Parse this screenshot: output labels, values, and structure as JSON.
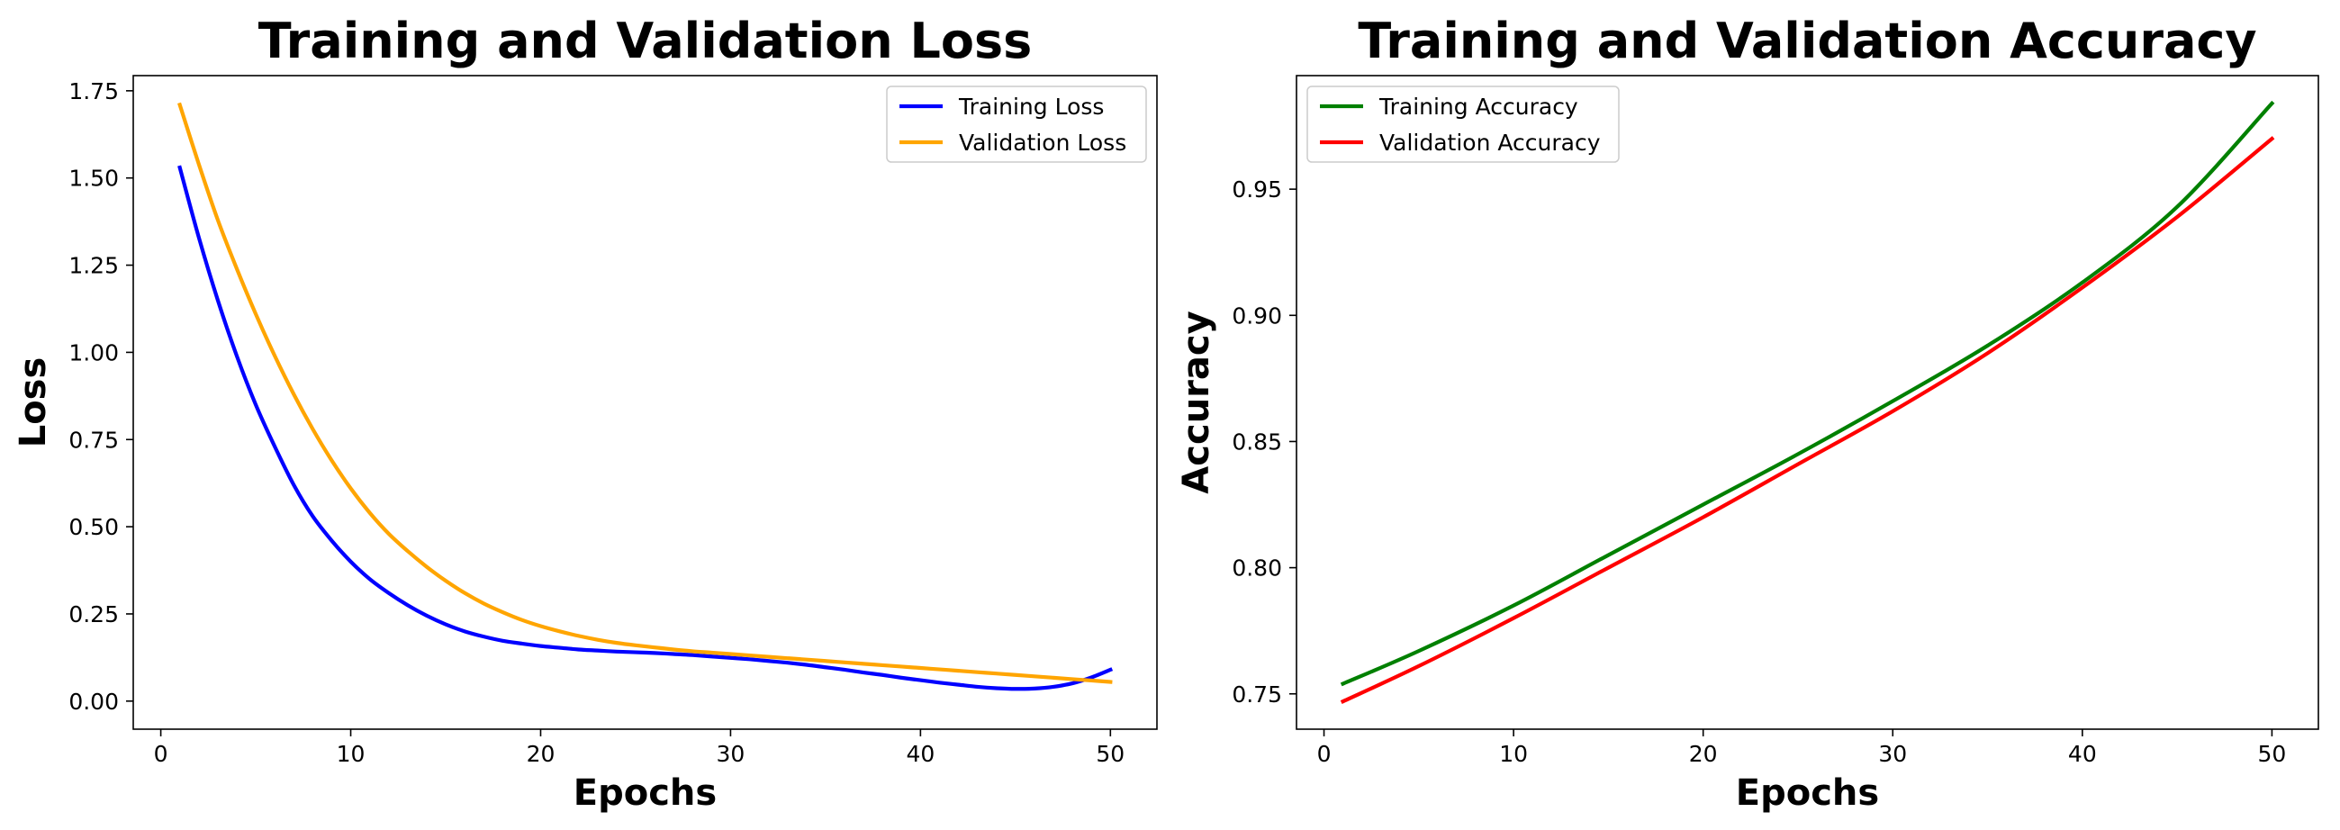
{
  "chart_data": [
    {
      "type": "line",
      "title": "Training and Validation Loss",
      "xlabel": "Epochs",
      "ylabel": "Loss",
      "xlim": [
        -1.45,
        52.45
      ],
      "ylim": [
        -0.0805,
        1.7935
      ],
      "xticks": [
        0,
        10,
        20,
        30,
        40,
        50
      ],
      "xtick_labels": [
        "0",
        "10",
        "20",
        "30",
        "40",
        "50"
      ],
      "yticks": [
        0,
        0.25,
        0.5,
        0.75,
        1.0,
        1.25,
        1.5,
        1.75
      ],
      "ytick_labels": [
        "0.00",
        "0.25",
        "0.50",
        "0.75",
        "1.00",
        "1.25",
        "1.50",
        "1.75"
      ],
      "legend_position": "upper-right",
      "series": [
        {
          "name": "Training Loss",
          "color": "#0000ff",
          "x": [
            1,
            2,
            3,
            4,
            5,
            6,
            7,
            8,
            9,
            10,
            11,
            12,
            13,
            14,
            15,
            16,
            17,
            18,
            19,
            20,
            21,
            22,
            23,
            24,
            25,
            26,
            27,
            28,
            29,
            30,
            31,
            32,
            33,
            34,
            35,
            36,
            37,
            38,
            39,
            40,
            41,
            42,
            43,
            44,
            45,
            46,
            47,
            48,
            49,
            50
          ],
          "values": [
            1.53,
            1.33,
            1.15,
            0.99,
            0.85,
            0.73,
            0.62,
            0.53,
            0.46,
            0.4,
            0.35,
            0.31,
            0.275,
            0.245,
            0.22,
            0.2,
            0.185,
            0.173,
            0.165,
            0.158,
            0.153,
            0.148,
            0.145,
            0.142,
            0.14,
            0.138,
            0.135,
            0.132,
            0.128,
            0.124,
            0.12,
            0.115,
            0.11,
            0.104,
            0.097,
            0.09,
            0.082,
            0.075,
            0.067,
            0.06,
            0.053,
            0.047,
            0.041,
            0.037,
            0.035,
            0.036,
            0.041,
            0.051,
            0.068,
            0.09
          ]
        },
        {
          "name": "Validation Loss",
          "color": "#ffa500",
          "x": [
            1,
            2,
            3,
            4,
            5,
            6,
            7,
            8,
            9,
            10,
            11,
            12,
            13,
            14,
            15,
            16,
            17,
            18,
            19,
            20,
            21,
            22,
            23,
            24,
            25,
            26,
            27,
            28,
            29,
            30,
            31,
            32,
            33,
            34,
            35,
            36,
            37,
            38,
            39,
            40,
            41,
            42,
            43,
            44,
            45,
            46,
            47,
            48,
            49,
            50
          ],
          "values": [
            1.71,
            1.54,
            1.38,
            1.24,
            1.11,
            0.99,
            0.88,
            0.78,
            0.69,
            0.61,
            0.54,
            0.48,
            0.43,
            0.385,
            0.345,
            0.31,
            0.28,
            0.255,
            0.233,
            0.215,
            0.2,
            0.187,
            0.176,
            0.167,
            0.16,
            0.154,
            0.148,
            0.143,
            0.139,
            0.135,
            0.131,
            0.127,
            0.123,
            0.119,
            0.115,
            0.111,
            0.107,
            0.103,
            0.099,
            0.095,
            0.091,
            0.087,
            0.083,
            0.079,
            0.075,
            0.071,
            0.067,
            0.063,
            0.059,
            0.055
          ]
        }
      ]
    },
    {
      "type": "line",
      "title": "Training and Validation Accuracy",
      "xlabel": "Epochs",
      "ylabel": "Accuracy",
      "xlim": [
        -1.45,
        52.45
      ],
      "ylim": [
        0.736,
        0.995
      ],
      "xticks": [
        0,
        10,
        20,
        30,
        40,
        50
      ],
      "xtick_labels": [
        "0",
        "10",
        "20",
        "30",
        "40",
        "50"
      ],
      "yticks": [
        0.75,
        0.8,
        0.85,
        0.9,
        0.95
      ],
      "ytick_labels": [
        "0.75",
        "0.80",
        "0.85",
        "0.90",
        "0.95"
      ],
      "legend_position": "upper-left",
      "series": [
        {
          "name": "Training Accuracy",
          "color": "#008000",
          "x": [
            1,
            5,
            10,
            15,
            20,
            25,
            30,
            35,
            40,
            45,
            50
          ],
          "values": [
            0.754,
            0.767,
            0.785,
            0.805,
            0.825,
            0.845,
            0.866,
            0.888,
            0.913,
            0.943,
            0.984
          ]
        },
        {
          "name": "Validation Accuracy",
          "color": "#ff0000",
          "x": [
            1,
            5,
            10,
            15,
            20,
            25,
            30,
            35,
            40,
            45,
            50
          ],
          "values": [
            0.747,
            0.761,
            0.78,
            0.8,
            0.82,
            0.841,
            0.862,
            0.885,
            0.911,
            0.939,
            0.97
          ]
        }
      ]
    }
  ]
}
